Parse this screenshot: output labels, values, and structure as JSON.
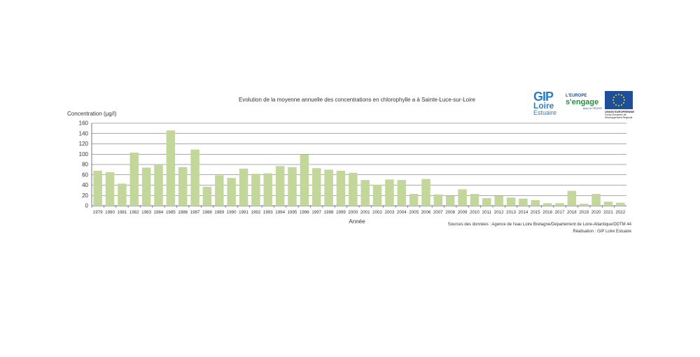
{
  "chart_data": {
    "type": "bar",
    "title": "Evolution de la moyenne annuelle des concentrations en chlorophylle a à Sainte-Luce-sur-Loire",
    "ylabel": "Concentration  (µg/l)",
    "xlabel": "Année",
    "ylim": [
      0,
      160
    ],
    "yticks": [
      0,
      20,
      40,
      60,
      80,
      100,
      120,
      140,
      160
    ],
    "grid": true,
    "bar_color": "#c4d79b",
    "categories": [
      "1979",
      "1980",
      "1981",
      "1982",
      "1983",
      "1984",
      "1985",
      "1986",
      "1987",
      "1988",
      "1989",
      "1990",
      "1991",
      "1992",
      "1993",
      "1994",
      "1995",
      "1996",
      "1997",
      "1998",
      "1999",
      "2000",
      "2001",
      "2002",
      "2003",
      "2004",
      "2005",
      "2006",
      "2007",
      "2008",
      "2009",
      "2010",
      "2011",
      "2012",
      "2013",
      "2014",
      "2015",
      "2016",
      "2017",
      "2018",
      "2019",
      "2020",
      "2021",
      "2022"
    ],
    "values": [
      68,
      65,
      43,
      103,
      74,
      80,
      146,
      75,
      109,
      37,
      59,
      54,
      72,
      62,
      63,
      77,
      75,
      100,
      73,
      70,
      68,
      64,
      50,
      41,
      51,
      50,
      23,
      52,
      22,
      20,
      32,
      23,
      15,
      19,
      16,
      14,
      11,
      5,
      5,
      29,
      4,
      23,
      8,
      6
    ]
  },
  "source_text": "Sources des données : Agence de l'eau Loire Bretagne/Département de Loire-Atlantique/DDTM 44",
  "credit_text": "Réalisation : GIP Loire Estuaire",
  "logos": {
    "gip": {
      "line1": "GIP",
      "line2": "Loire",
      "line3": "Estuaire"
    },
    "europe": {
      "line1": "L'EUROPE",
      "line2": "s'engage",
      "line3": "avec le FEDER"
    },
    "ue": {
      "line1": "UNION EUROPÉENNE",
      "line2": "Fonds Européen de Développement Régional"
    }
  }
}
